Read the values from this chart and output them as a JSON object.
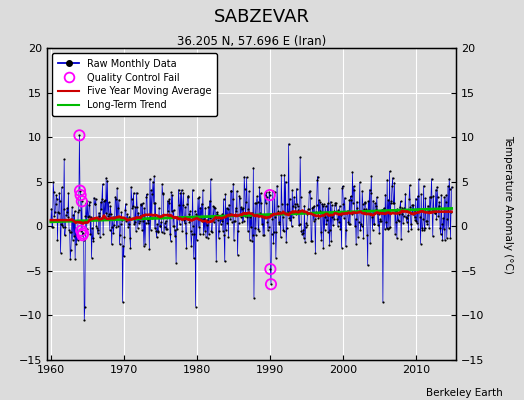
{
  "title": "SABZEVAR",
  "subtitle": "36.205 N, 57.696 E (Iran)",
  "ylabel_right": "Temperature Anomaly (°C)",
  "credit": "Berkeley Earth",
  "xlim": [
    1959.5,
    2015.5
  ],
  "ylim": [
    -15,
    20
  ],
  "yticks": [
    -15,
    -10,
    -5,
    0,
    5,
    10,
    15,
    20
  ],
  "xticks": [
    1960,
    1970,
    1980,
    1990,
    2000,
    2010
  ],
  "year_start": 1960,
  "year_end": 2014,
  "background_color": "#dcdcdc",
  "grid_color": "#ffffff",
  "raw_line_color": "#0000cc",
  "raw_dot_color": "#000000",
  "qc_fail_color": "#ff00ff",
  "moving_avg_color": "#cc0000",
  "trend_color": "#00bb00",
  "seed": 12345
}
